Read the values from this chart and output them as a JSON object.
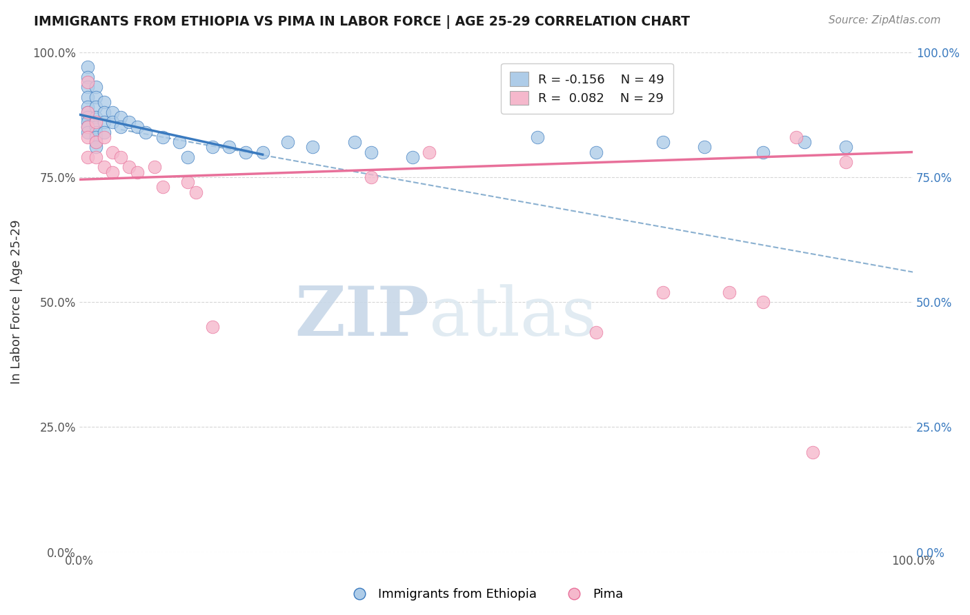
{
  "title": "IMMIGRANTS FROM ETHIOPIA VS PIMA IN LABOR FORCE | AGE 25-29 CORRELATION CHART",
  "source_text": "Source: ZipAtlas.com",
  "ylabel": "In Labor Force | Age 25-29",
  "xlim": [
    0.0,
    1.0
  ],
  "ylim": [
    0.0,
    1.0
  ],
  "ytick_positions": [
    0.0,
    0.25,
    0.5,
    0.75,
    1.0
  ],
  "ytick_labels": [
    "0.0%",
    "25.0%",
    "50.0%",
    "75.0%",
    "100.0%"
  ],
  "blue_color": "#aecce8",
  "pink_color": "#f5b8cc",
  "blue_line_color": "#3a7abf",
  "pink_line_color": "#e8709a",
  "dashed_line_color": "#8ab0d0",
  "background_color": "#ffffff",
  "grid_color": "#cccccc",
  "blue_scatter": [
    [
      0.01,
      0.97
    ],
    [
      0.01,
      0.95
    ],
    [
      0.01,
      0.93
    ],
    [
      0.01,
      0.91
    ],
    [
      0.01,
      0.89
    ],
    [
      0.01,
      0.88
    ],
    [
      0.01,
      0.87
    ],
    [
      0.01,
      0.86
    ],
    [
      0.01,
      0.85
    ],
    [
      0.01,
      0.84
    ],
    [
      0.02,
      0.93
    ],
    [
      0.02,
      0.91
    ],
    [
      0.02,
      0.89
    ],
    [
      0.02,
      0.87
    ],
    [
      0.02,
      0.85
    ],
    [
      0.02,
      0.84
    ],
    [
      0.02,
      0.83
    ],
    [
      0.02,
      0.82
    ],
    [
      0.02,
      0.81
    ],
    [
      0.03,
      0.9
    ],
    [
      0.03,
      0.88
    ],
    [
      0.03,
      0.86
    ],
    [
      0.03,
      0.84
    ],
    [
      0.04,
      0.88
    ],
    [
      0.04,
      0.86
    ],
    [
      0.05,
      0.87
    ],
    [
      0.05,
      0.85
    ],
    [
      0.06,
      0.86
    ],
    [
      0.07,
      0.85
    ],
    [
      0.08,
      0.84
    ],
    [
      0.1,
      0.83
    ],
    [
      0.12,
      0.82
    ],
    [
      0.13,
      0.79
    ],
    [
      0.16,
      0.81
    ],
    [
      0.18,
      0.81
    ],
    [
      0.2,
      0.8
    ],
    [
      0.22,
      0.8
    ],
    [
      0.25,
      0.82
    ],
    [
      0.28,
      0.81
    ],
    [
      0.33,
      0.82
    ],
    [
      0.35,
      0.8
    ],
    [
      0.4,
      0.79
    ],
    [
      0.55,
      0.83
    ],
    [
      0.62,
      0.8
    ],
    [
      0.7,
      0.82
    ],
    [
      0.75,
      0.81
    ],
    [
      0.82,
      0.8
    ],
    [
      0.87,
      0.82
    ],
    [
      0.92,
      0.81
    ]
  ],
  "pink_scatter": [
    [
      0.01,
      0.94
    ],
    [
      0.01,
      0.88
    ],
    [
      0.01,
      0.85
    ],
    [
      0.01,
      0.83
    ],
    [
      0.01,
      0.79
    ],
    [
      0.02,
      0.86
    ],
    [
      0.02,
      0.82
    ],
    [
      0.02,
      0.79
    ],
    [
      0.03,
      0.83
    ],
    [
      0.03,
      0.77
    ],
    [
      0.04,
      0.8
    ],
    [
      0.04,
      0.76
    ],
    [
      0.05,
      0.79
    ],
    [
      0.06,
      0.77
    ],
    [
      0.07,
      0.76
    ],
    [
      0.09,
      0.77
    ],
    [
      0.1,
      0.73
    ],
    [
      0.13,
      0.74
    ],
    [
      0.14,
      0.72
    ],
    [
      0.16,
      0.45
    ],
    [
      0.35,
      0.75
    ],
    [
      0.42,
      0.8
    ],
    [
      0.62,
      0.44
    ],
    [
      0.7,
      0.52
    ],
    [
      0.78,
      0.52
    ],
    [
      0.82,
      0.5
    ],
    [
      0.86,
      0.83
    ],
    [
      0.88,
      0.2
    ],
    [
      0.92,
      0.78
    ]
  ],
  "blue_line_x": [
    0.0,
    0.22
  ],
  "blue_line_y": [
    0.875,
    0.795
  ],
  "pink_line_x": [
    0.0,
    1.0
  ],
  "pink_line_y": [
    0.745,
    0.8
  ],
  "dashed_line_x": [
    0.05,
    1.0
  ],
  "dashed_line_y": [
    0.845,
    0.56
  ]
}
